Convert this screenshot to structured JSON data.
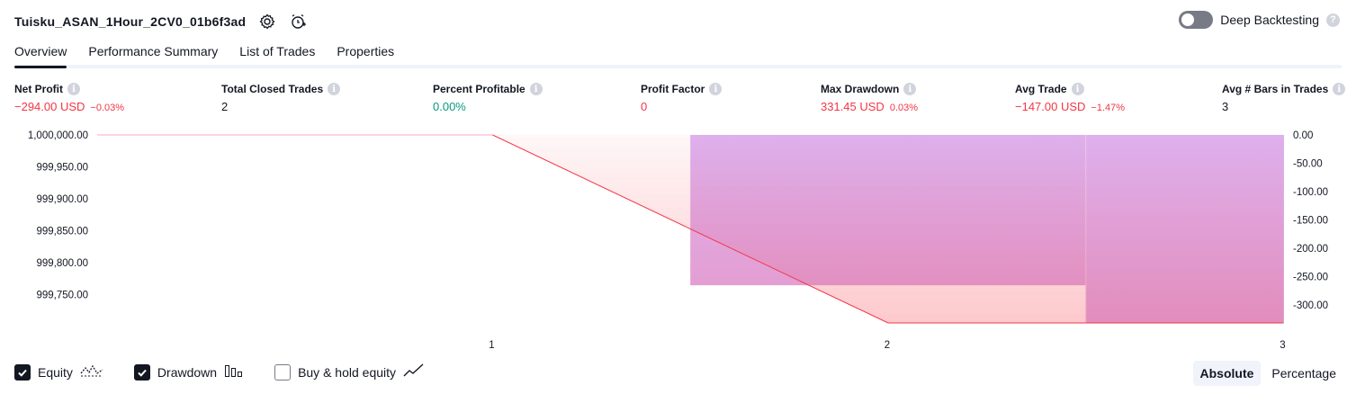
{
  "header": {
    "strategy_title": "Tuisku_ASAN_1Hour_2CV0_01b6f3ad",
    "settings_icon": "gear-icon",
    "alert_icon": "alarm-add-icon"
  },
  "deep_backtesting": {
    "label": "Deep Backtesting",
    "enabled": false
  },
  "tabs": [
    {
      "label": "Overview",
      "active": true
    },
    {
      "label": "Performance Summary",
      "active": false
    },
    {
      "label": "List of Trades",
      "active": false
    },
    {
      "label": "Properties",
      "active": false
    }
  ],
  "stats": [
    {
      "label": "Net Profit",
      "value": "−294.00 USD",
      "sub": "−0.03%",
      "tone": "neg"
    },
    {
      "label": "Total Closed Trades",
      "value": "2",
      "sub": "",
      "tone": "neu"
    },
    {
      "label": "Percent Profitable",
      "value": "0.00%",
      "sub": "",
      "tone": "pos"
    },
    {
      "label": "Profit Factor",
      "value": "0",
      "sub": "",
      "tone": "neg"
    },
    {
      "label": "Max Drawdown",
      "value": "331.45 USD",
      "sub": "0.03%",
      "tone": "neg"
    },
    {
      "label": "Avg Trade",
      "value": "−147.00 USD",
      "sub": "−1.47%",
      "tone": "neg"
    },
    {
      "label": "Avg # Bars in Trades",
      "value": "3",
      "sub": "",
      "tone": "neu"
    }
  ],
  "chart_data": {
    "type": "line",
    "x_ticks": [
      "1",
      "2",
      "3"
    ],
    "left_axis": {
      "ticks": [
        "1,000,000.00",
        "999,950.00",
        "999,900.00",
        "999,850.00",
        "999,800.00",
        "999,750.00"
      ],
      "min": 999706,
      "max": 1000000
    },
    "right_axis": {
      "ticks": [
        "0.00",
        "-50.00",
        "-100.00",
        "-150.00",
        "-200.00",
        "-250.00",
        "-300.00"
      ],
      "min": -331.45,
      "max": 0
    },
    "equity": {
      "x": [
        0,
        1,
        2,
        3
      ],
      "values": [
        1000000,
        1000000,
        999706,
        999706
      ]
    },
    "drawdown_bars": [
      {
        "x_from": 1.5,
        "x_to": 2.5,
        "value": -265
      },
      {
        "x_from": 2.5,
        "x_to": 3.5,
        "value": -331.45
      }
    ],
    "colors": {
      "equity_line": "#f23645",
      "equity_fill": "#fcbfc3",
      "drawdown_fill": "#d9b3f7"
    }
  },
  "legend": [
    {
      "label": "Equity",
      "checked": true,
      "icon": "equity-line-icon"
    },
    {
      "label": "Drawdown",
      "checked": true,
      "icon": "drawdown-bars-icon"
    },
    {
      "label": "Buy & hold equity",
      "checked": false,
      "icon": "buy-hold-line-icon"
    }
  ],
  "modes": [
    {
      "label": "Absolute",
      "active": true
    },
    {
      "label": "Percentage",
      "active": false
    }
  ]
}
